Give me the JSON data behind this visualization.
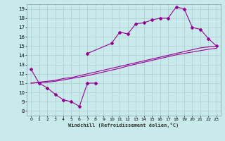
{
  "xlabel": "Windchill (Refroidissement éolien,°C)",
  "bg_color": "#c8eaea",
  "line_color": "#990099",
  "grid_color": "#aacccc",
  "ylim": [
    7.5,
    19.5
  ],
  "xlim": [
    -0.5,
    23.5
  ],
  "yticks": [
    8,
    9,
    10,
    11,
    12,
    13,
    14,
    15,
    16,
    17,
    18,
    19
  ],
  "xticks": [
    0,
    1,
    2,
    3,
    4,
    5,
    6,
    7,
    8,
    9,
    10,
    11,
    12,
    13,
    14,
    15,
    16,
    17,
    18,
    19,
    20,
    21,
    22,
    23
  ],
  "line1_x": [
    0,
    1,
    2,
    3,
    4,
    5,
    6,
    7,
    8
  ],
  "line1_y": [
    12.5,
    11.0,
    10.5,
    9.8,
    9.2,
    9.0,
    8.5,
    11.0,
    11.0
  ],
  "line2_x": [
    7,
    10,
    11,
    12,
    13,
    14,
    15,
    16,
    17,
    18,
    19,
    20,
    21,
    22,
    23
  ],
  "line2_y": [
    14.2,
    15.3,
    16.5,
    16.3,
    17.4,
    17.5,
    17.8,
    18.0,
    18.0,
    19.2,
    19.0,
    17.0,
    16.8,
    15.8,
    15.0
  ],
  "line3_x": [
    0,
    1,
    2,
    3,
    4,
    5,
    6,
    7,
    8,
    9,
    10,
    11,
    12,
    13,
    14,
    15,
    16,
    17,
    18,
    19,
    20,
    21,
    22,
    23
  ],
  "line3_y": [
    11.0,
    11.1,
    11.2,
    11.3,
    11.5,
    11.6,
    11.8,
    12.0,
    12.2,
    12.4,
    12.6,
    12.8,
    13.0,
    13.2,
    13.4,
    13.6,
    13.8,
    14.0,
    14.2,
    14.4,
    14.6,
    14.8,
    14.9,
    15.0
  ],
  "line4_x": [
    0,
    1,
    2,
    3,
    4,
    5,
    6,
    7,
    8,
    9,
    10,
    11,
    12,
    13,
    14,
    15,
    16,
    17,
    18,
    19,
    20,
    21,
    22,
    23
  ],
  "line4_y": [
    11.0,
    11.05,
    11.1,
    11.2,
    11.35,
    11.5,
    11.65,
    11.8,
    12.0,
    12.2,
    12.4,
    12.6,
    12.85,
    13.05,
    13.25,
    13.45,
    13.65,
    13.85,
    14.05,
    14.2,
    14.35,
    14.5,
    14.65,
    14.75
  ]
}
